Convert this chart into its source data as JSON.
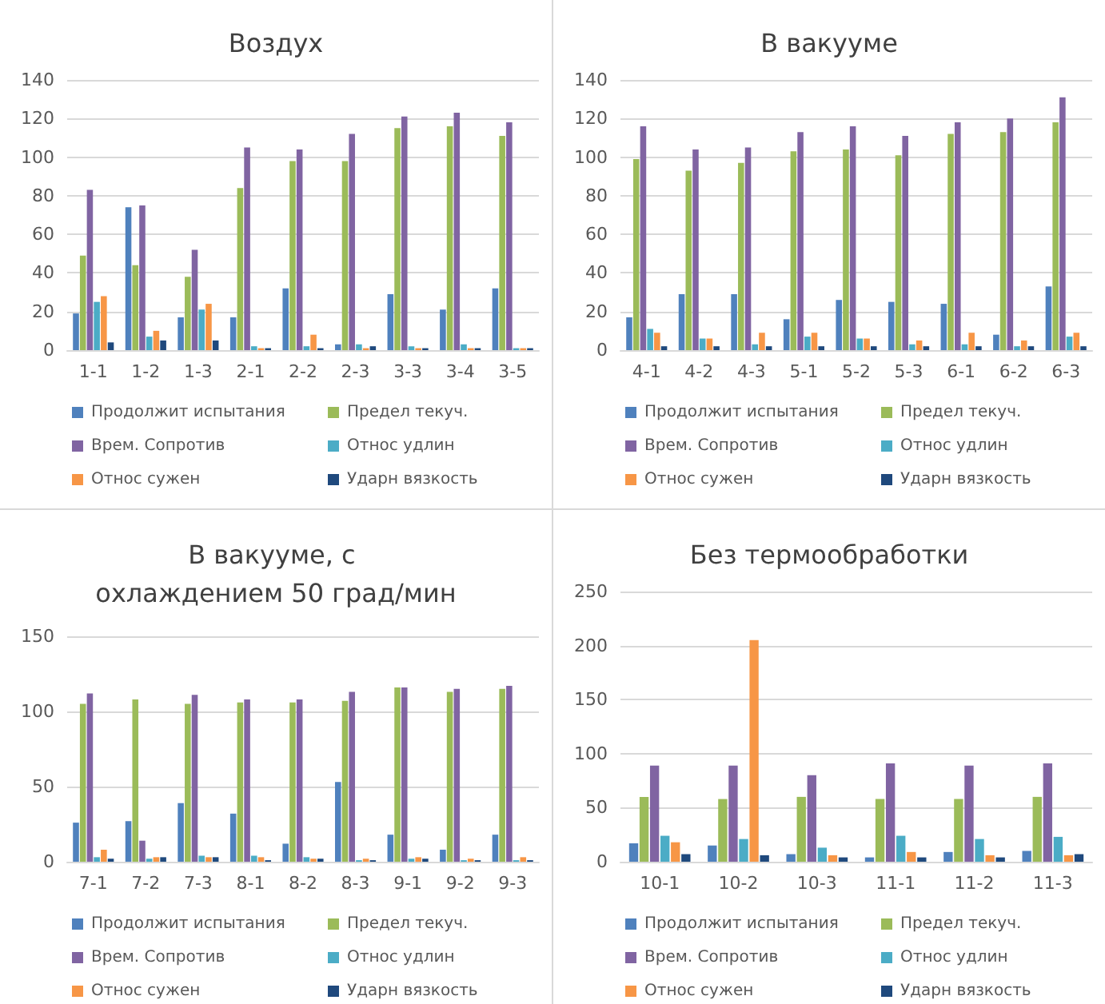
{
  "chart_data": [
    {
      "type": "bar",
      "title": "Воздух",
      "categories": [
        "1-1",
        "1-2",
        "1-3",
        "2-1",
        "2-2",
        "2-3",
        "3-3",
        "3-4",
        "3-5"
      ],
      "ylim": [
        0,
        140
      ],
      "yticks": [
        0,
        20,
        40,
        60,
        80,
        100,
        120,
        140
      ],
      "grid": "y",
      "legend": "bottom",
      "series": [
        {
          "name": "Продолжит испытания",
          "color": "#4f81bd",
          "values": [
            19,
            74,
            17,
            17,
            32,
            3,
            29,
            21,
            32
          ]
        },
        {
          "name": "Предел текуч.",
          "color": "#9bbb59",
          "values": [
            49,
            44,
            38,
            84,
            98,
            98,
            115,
            116,
            111
          ]
        },
        {
          "name": "Врем. Сопротив",
          "color": "#8064a2",
          "values": [
            83,
            75,
            52,
            105,
            104,
            112,
            121,
            123,
            118
          ]
        },
        {
          "name": "Относ удлин",
          "color": "#4bacc6",
          "values": [
            25,
            7,
            21,
            2,
            2,
            3,
            2,
            3,
            1
          ]
        },
        {
          "name": "Относ сужен",
          "color": "#f79646",
          "values": [
            28,
            10,
            24,
            1,
            8,
            1,
            1,
            1,
            1
          ]
        },
        {
          "name": "Ударн вязкость",
          "color": "#1f497d",
          "values": [
            4,
            5,
            5,
            1,
            1,
            2,
            1,
            1,
            1
          ]
        }
      ]
    },
    {
      "type": "bar",
      "title": "В вакууме",
      "categories": [
        "4-1",
        "4-2",
        "4-3",
        "5-1",
        "5-2",
        "5-3",
        "6-1",
        "6-2",
        "6-3"
      ],
      "ylim": [
        0,
        140
      ],
      "yticks": [
        0,
        20,
        40,
        60,
        80,
        100,
        120,
        140
      ],
      "grid": "y",
      "legend": "bottom",
      "series": [
        {
          "name": "Продолжит испытания",
          "color": "#4f81bd",
          "values": [
            17,
            29,
            29,
            16,
            26,
            25,
            24,
            8,
            33
          ]
        },
        {
          "name": "Предел текуч.",
          "color": "#9bbb59",
          "values": [
            99,
            93,
            97,
            103,
            104,
            101,
            112,
            113,
            118
          ]
        },
        {
          "name": "Врем. Сопротив",
          "color": "#8064a2",
          "values": [
            116,
            104,
            105,
            113,
            116,
            111,
            118,
            120,
            131
          ]
        },
        {
          "name": "Относ удлин",
          "color": "#4bacc6",
          "values": [
            11,
            6,
            3,
            7,
            6,
            3,
            3,
            2,
            7
          ]
        },
        {
          "name": "Относ сужен",
          "color": "#f79646",
          "values": [
            9,
            6,
            9,
            9,
            6,
            5,
            9,
            5,
            9
          ]
        },
        {
          "name": "Ударн вязкость",
          "color": "#1f497d",
          "values": [
            2,
            2,
            2,
            2,
            2,
            2,
            2,
            2,
            2
          ]
        }
      ]
    },
    {
      "type": "bar",
      "title": "В вакууме, с охлаждением 50 град/мин",
      "categories": [
        "7-1",
        "7-2",
        "7-3",
        "8-1",
        "8-2",
        "8-3",
        "9-1",
        "9-2",
        "9-3"
      ],
      "ylim": [
        0,
        150
      ],
      "yticks": [
        0,
        50,
        100,
        150
      ],
      "grid": "y",
      "legend": "bottom",
      "series": [
        {
          "name": "Продолжит испытания",
          "color": "#4f81bd",
          "values": [
            26,
            27,
            39,
            32,
            12,
            53,
            18,
            8,
            18
          ]
        },
        {
          "name": "Предел текуч.",
          "color": "#9bbb59",
          "values": [
            105,
            108,
            105,
            106,
            106,
            107,
            116,
            113,
            115
          ]
        },
        {
          "name": "Врем. Сопротив",
          "color": "#8064a2",
          "values": [
            112,
            14,
            111,
            108,
            108,
            113,
            116,
            115,
            117
          ]
        },
        {
          "name": "Относ удлин",
          "color": "#4bacc6",
          "values": [
            3,
            2,
            4,
            4,
            3,
            1,
            2,
            1,
            1
          ]
        },
        {
          "name": "Относ сужен",
          "color": "#f79646",
          "values": [
            8,
            3,
            3,
            3,
            2,
            2,
            3,
            2,
            3
          ]
        },
        {
          "name": "Ударн вязкость",
          "color": "#1f497d",
          "values": [
            2,
            3,
            3,
            1,
            2,
            1,
            2,
            1,
            1
          ]
        }
      ]
    },
    {
      "type": "bar",
      "title": "Без термообработки",
      "categories": [
        "10-1",
        "10-2",
        "10-3",
        "11-1",
        "11-2",
        "11-3"
      ],
      "ylim": [
        0,
        250
      ],
      "yticks": [
        0,
        50,
        100,
        150,
        200,
        250
      ],
      "grid": "y",
      "legend": "bottom",
      "series": [
        {
          "name": "Продолжит испытания",
          "color": "#4f81bd",
          "values": [
            17,
            15,
            7,
            4,
            9,
            10
          ]
        },
        {
          "name": "Предел текуч.",
          "color": "#9bbb59",
          "values": [
            60,
            58,
            60,
            58,
            58,
            60
          ]
        },
        {
          "name": "Врем. Сопротив",
          "color": "#8064a2",
          "values": [
            89,
            89,
            80,
            91,
            89,
            91
          ]
        },
        {
          "name": "Относ удлин",
          "color": "#4bacc6",
          "values": [
            24,
            21,
            13,
            24,
            21,
            23
          ]
        },
        {
          "name": "Относ сужен",
          "color": "#f79646",
          "values": [
            18,
            205,
            6,
            9,
            6,
            6
          ]
        },
        {
          "name": "Ударн вязкость",
          "color": "#1f497d",
          "values": [
            7,
            6,
            4,
            4,
            4,
            7
          ]
        }
      ]
    }
  ]
}
